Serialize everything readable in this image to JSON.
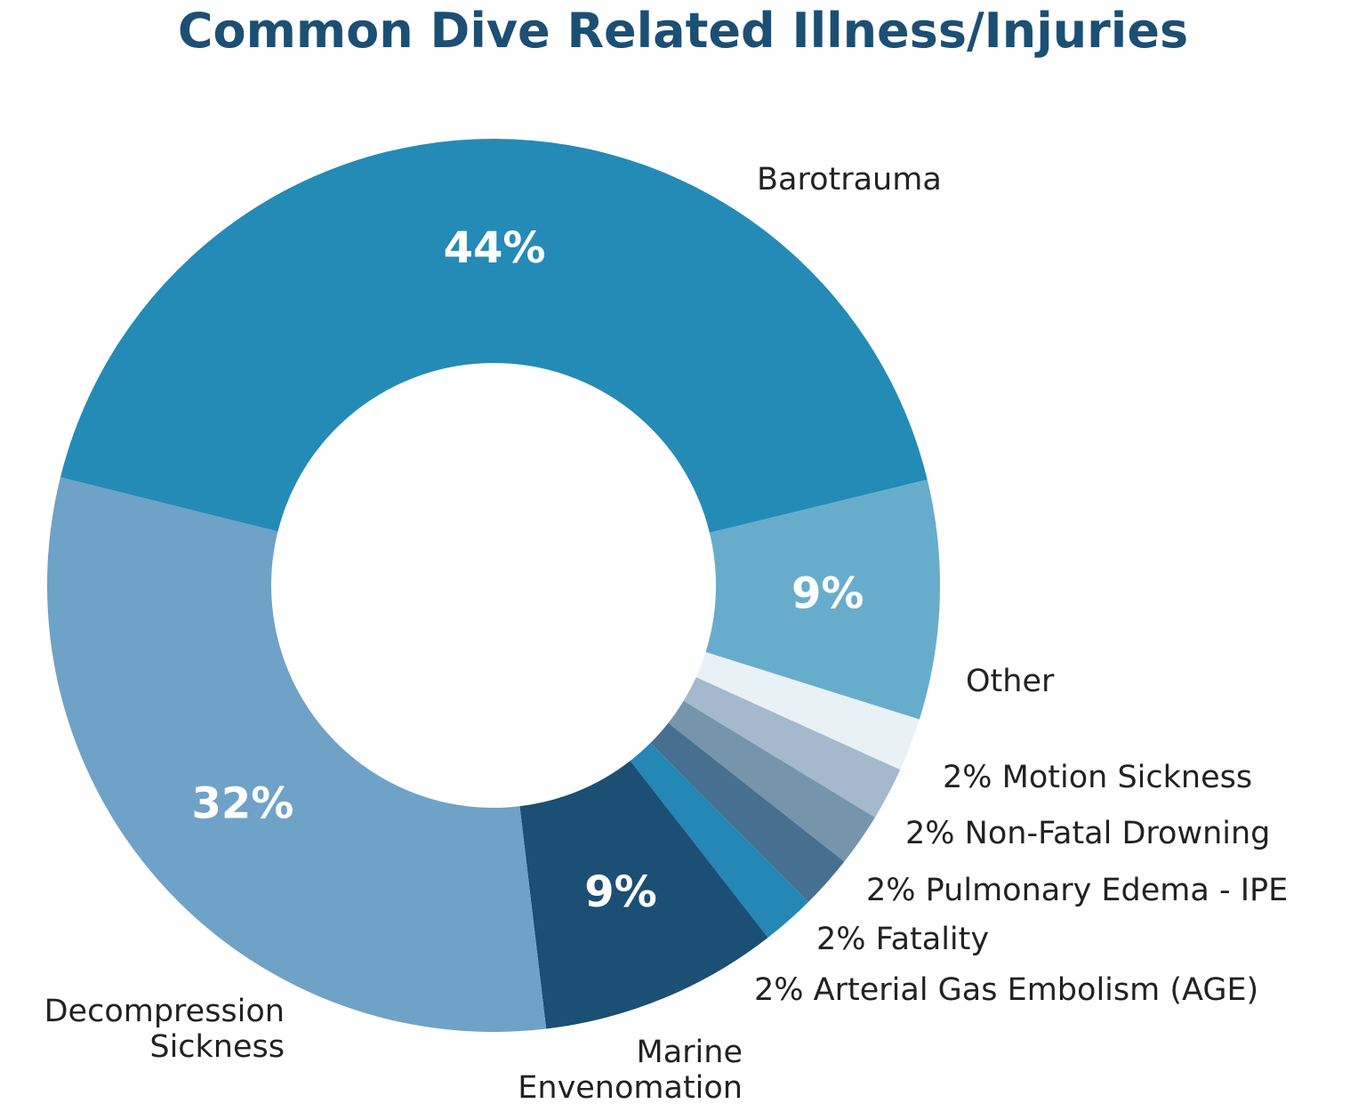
{
  "chart_data": {
    "type": "donut",
    "title": "Common Dive Related Illness/Injuries",
    "categories": [
      "Barotrauma",
      "Other",
      "Motion Sickness",
      "Non-Fatal Drowning",
      "Pulmonary Edema - IPE",
      "Fatality",
      "Arterial Gas Embolism (AGE)",
      "Marine Envenomation",
      "Decompression Sickness"
    ],
    "values": [
      44,
      9,
      2,
      2,
      2,
      2,
      2,
      9,
      32
    ],
    "value_labels": [
      "44%",
      "9%",
      "2%",
      "2%",
      "2%",
      "2%",
      "2%",
      "9%",
      "32%"
    ],
    "colors": [
      "#248bb6",
      "#67adcb",
      "#e8f1f6",
      "#a4b9cb",
      "#7695ab",
      "#476f90",
      "#2487b5",
      "#1b4f74",
      "#6fa2c7"
    ]
  }
}
